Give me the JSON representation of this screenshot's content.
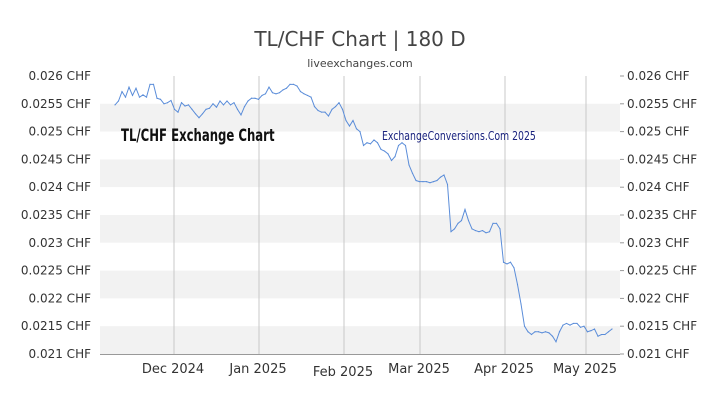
{
  "chart_data": {
    "type": "line",
    "title": "TL/CHF Chart | 180 D",
    "subtitle": "liveexchanges.com",
    "annotations": [
      "TL/CHF Exchange Chart",
      "ExchangeConversions.Com 2025"
    ],
    "ylim": [
      0.021,
      0.026
    ],
    "y_ticks": [
      0.026,
      0.0255,
      0.025,
      0.0245,
      0.024,
      0.0235,
      0.023,
      0.0225,
      0.022,
      0.0215,
      0.021
    ],
    "y_tick_labels": [
      "0.026 CHF",
      "0.0255 CHF",
      "0.025 CHF",
      "0.0245 CHF",
      "0.024 CHF",
      "0.0235 CHF",
      "0.023 CHF",
      "0.0225 CHF",
      "0.022 CHF",
      "0.0215 CHF",
      "0.021 CHF"
    ],
    "x_ticks": [
      "Dec 2024",
      "Jan 2025",
      "Feb 2025",
      "Mar 2025",
      "Apr 2025",
      "May 2025"
    ],
    "grid": true,
    "line_color": "#5b8dd9",
    "series": [
      {
        "values": [
          0.02548,
          0.02555,
          0.02572,
          0.02562,
          0.0258,
          0.02565,
          0.02578,
          0.02562,
          0.02566,
          0.02562,
          0.02585,
          0.02585,
          0.0256,
          0.02558,
          0.0255,
          0.02552,
          0.02556,
          0.0254,
          0.02535,
          0.02552,
          0.02546,
          0.02548,
          0.0254,
          0.02532,
          0.02525,
          0.02532,
          0.0254,
          0.02542,
          0.0255,
          0.02544,
          0.02555,
          0.02548,
          0.02555,
          0.02548,
          0.02552,
          0.0254,
          0.0253,
          0.02545,
          0.02555,
          0.0256,
          0.0256,
          0.02558,
          0.02565,
          0.02568,
          0.0258,
          0.0257,
          0.02568,
          0.0257,
          0.02575,
          0.02578,
          0.02585,
          0.02585,
          0.02582,
          0.02572,
          0.02568,
          0.02565,
          0.02562,
          0.02545,
          0.02538,
          0.02535,
          0.02535,
          0.02528,
          0.0254,
          0.02545,
          0.02552,
          0.0254,
          0.0252,
          0.0251,
          0.0252,
          0.02505,
          0.025,
          0.02475,
          0.0248,
          0.02478,
          0.02485,
          0.0248,
          0.02468,
          0.02465,
          0.0246,
          0.02448,
          0.02455,
          0.02475,
          0.0248,
          0.02475,
          0.0244,
          0.02425,
          0.02412,
          0.0241,
          0.0241,
          0.0241,
          0.02408,
          0.0241,
          0.02412,
          0.02418,
          0.02422,
          0.02405,
          0.0232,
          0.02325,
          0.02335,
          0.0234,
          0.0236,
          0.0234,
          0.02325,
          0.02322,
          0.0232,
          0.02322,
          0.02318,
          0.0232,
          0.02335,
          0.02335,
          0.02325,
          0.02265,
          0.02262,
          0.02265,
          0.02255,
          0.02225,
          0.0219,
          0.0215,
          0.0214,
          0.02135,
          0.0214,
          0.0214,
          0.02138,
          0.0214,
          0.02138,
          0.02132,
          0.02122,
          0.0214,
          0.02152,
          0.02155,
          0.02152,
          0.02155,
          0.02155,
          0.02148,
          0.0215,
          0.0214,
          0.02142,
          0.02145,
          0.02132,
          0.02135,
          0.02135,
          0.0214,
          0.02145
        ]
      }
    ]
  }
}
